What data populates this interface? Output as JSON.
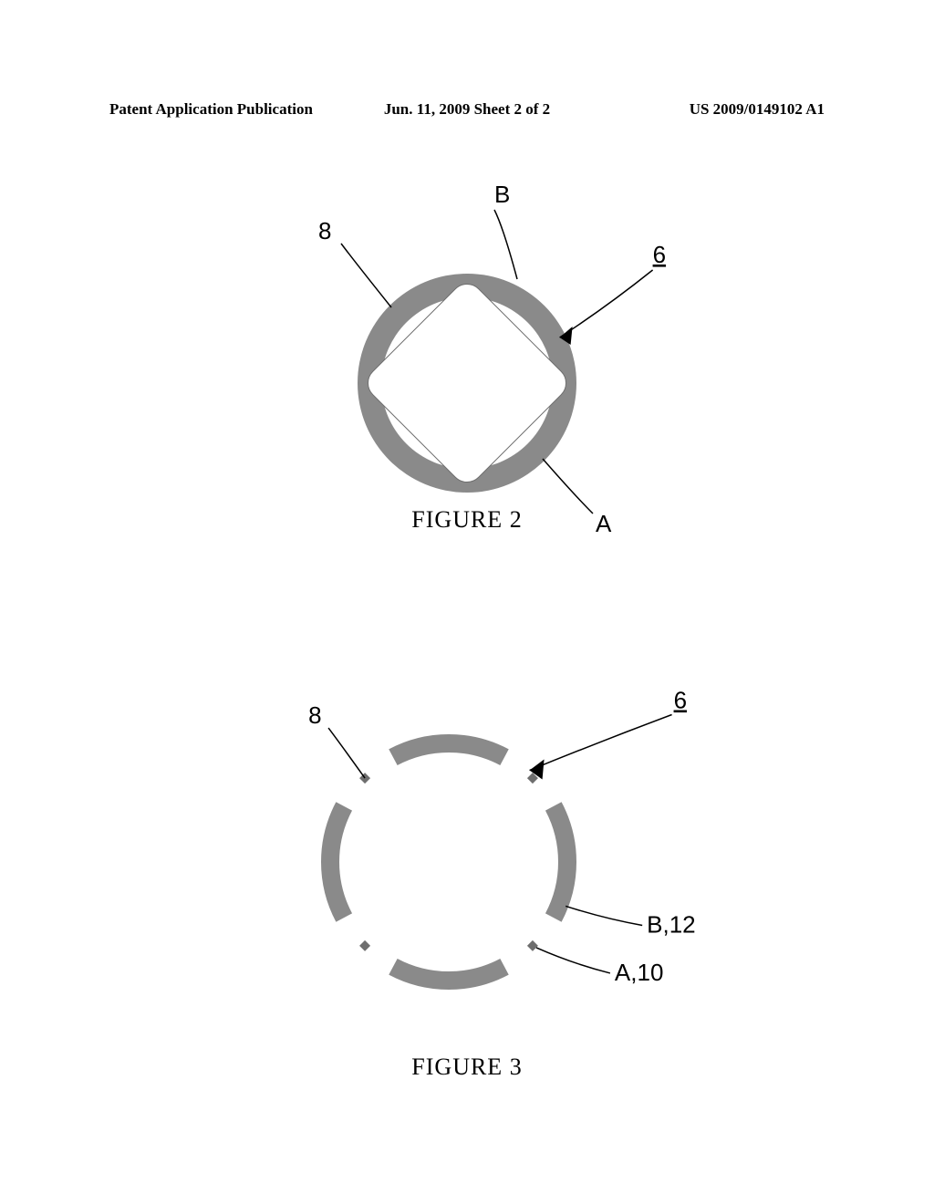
{
  "header": {
    "left": "Patent Application Publication",
    "center": "Jun. 11, 2009  Sheet 2 of 2",
    "right": "US 2009/0149102 A1"
  },
  "figure2": {
    "caption": "FIGURE 2",
    "ring_color": "#8a8a8a",
    "inner_square_fill": "#ffffff",
    "inner_square_stroke": "#6e6e6e",
    "ring_outer_r": 120,
    "ring_inner_r": 100,
    "square_half": 82,
    "labels": {
      "B": "B",
      "eight": "8",
      "six": "6",
      "A": "A"
    },
    "leader_color": "#000000"
  },
  "figure3": {
    "caption": "FIGURE 3",
    "segment_color": "#8a8a8a",
    "segment_stroke_width": 20,
    "diamond_color": "#6e6e6e",
    "ring_r": 130,
    "arc_half_deg": 28,
    "diamond_size": 6,
    "labels": {
      "eight": "8",
      "six": "6",
      "B12": "B,12",
      "A10": "A,10"
    }
  }
}
